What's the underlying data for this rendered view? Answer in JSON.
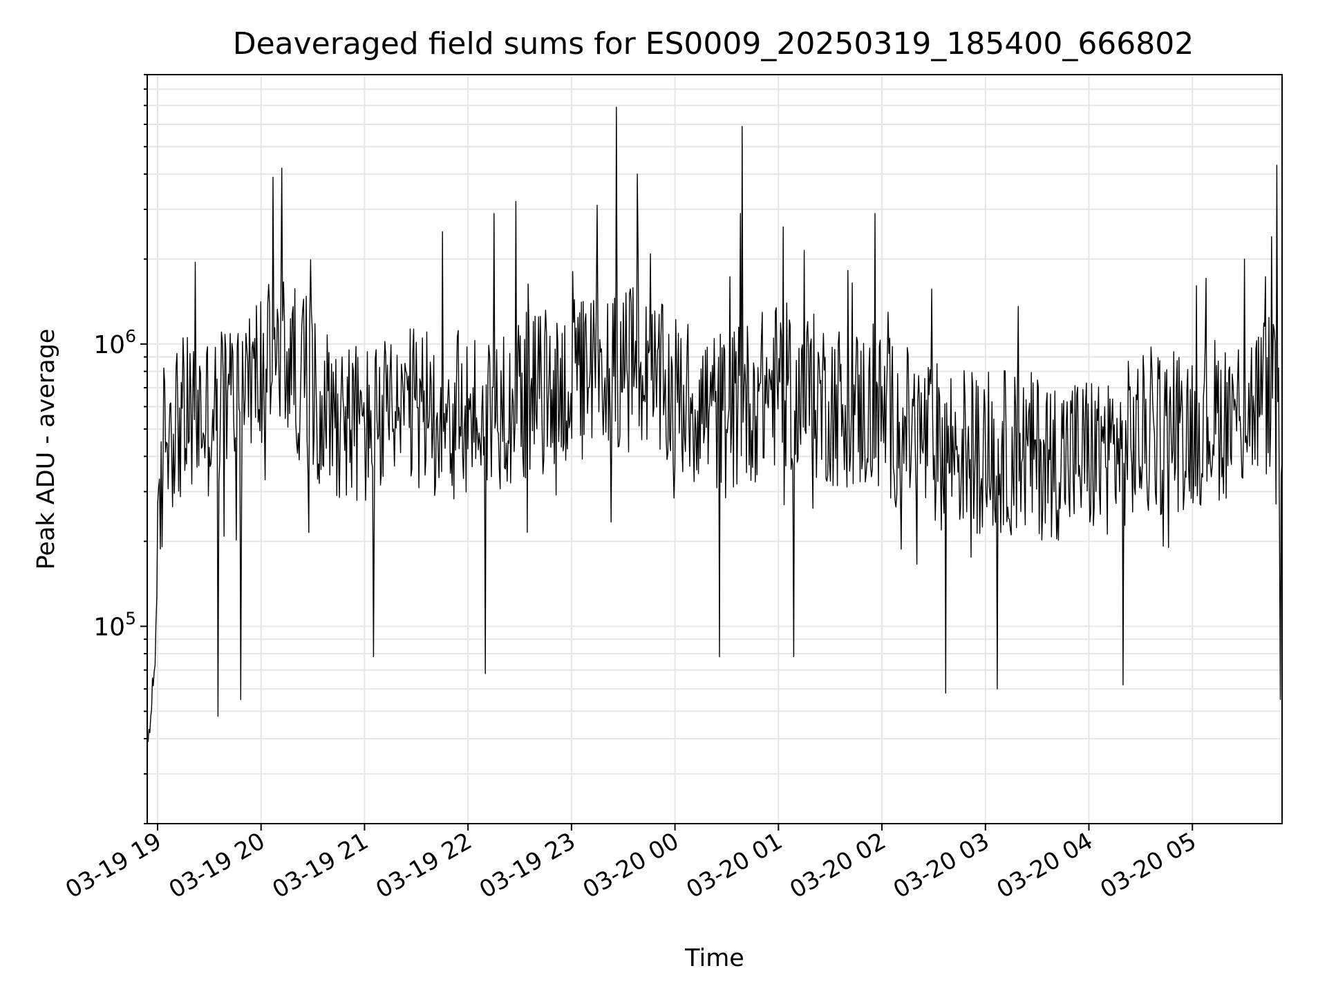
{
  "chart_data": {
    "type": "line",
    "title": "Deaveraged field sums for ES0009_20250319_185400_666802",
    "xlabel": "Time",
    "ylabel": "Peak ADU - average",
    "yscale": "log",
    "ylim": [
      20000,
      9000000
    ],
    "xlim": [
      "2025-03-19 18:54",
      "2025-03-20 05:52"
    ],
    "grid": true,
    "line_color": "#000000",
    "grid_color": "#e6e6e6",
    "x_ticks": [
      {
        "value": "2025-03-19 19:00",
        "label": "03-19 19"
      },
      {
        "value": "2025-03-19 20:00",
        "label": "03-19 20"
      },
      {
        "value": "2025-03-19 21:00",
        "label": "03-19 21"
      },
      {
        "value": "2025-03-19 22:00",
        "label": "03-19 22"
      },
      {
        "value": "2025-03-19 23:00",
        "label": "03-19 23"
      },
      {
        "value": "2025-03-20 00:00",
        "label": "03-20 00"
      },
      {
        "value": "2025-03-20 01:00",
        "label": "03-20 01"
      },
      {
        "value": "2025-03-20 02:00",
        "label": "03-20 02"
      },
      {
        "value": "2025-03-20 03:00",
        "label": "03-20 03"
      },
      {
        "value": "2025-03-20 04:00",
        "label": "03-20 04"
      },
      {
        "value": "2025-03-20 05:00",
        "label": "03-20 05"
      }
    ],
    "y_ticks": [
      {
        "value": 100000,
        "base": "10",
        "exp": "5"
      },
      {
        "value": 1000000,
        "base": "10",
        "exp": "6"
      }
    ],
    "baseline": [
      {
        "x": "2025-03-19 18:54",
        "y": 35000
      },
      {
        "x": "2025-03-19 18:58",
        "y": 70000
      },
      {
        "x": "2025-03-19 19:01",
        "y": 200000
      },
      {
        "x": "2025-03-19 19:04",
        "y": 520000
      },
      {
        "x": "2025-03-19 19:30",
        "y": 560000
      },
      {
        "x": "2025-03-19 20:00",
        "y": 800000
      },
      {
        "x": "2025-03-19 20:15",
        "y": 900000
      },
      {
        "x": "2025-03-19 20:30",
        "y": 650000
      },
      {
        "x": "2025-03-19 21:00",
        "y": 500000
      },
      {
        "x": "2025-03-19 21:30",
        "y": 580000
      },
      {
        "x": "2025-03-19 22:00",
        "y": 560000
      },
      {
        "x": "2025-03-19 22:30",
        "y": 640000
      },
      {
        "x": "2025-03-19 23:00",
        "y": 720000
      },
      {
        "x": "2025-03-19 23:30",
        "y": 850000
      },
      {
        "x": "2025-03-20 00:00",
        "y": 650000
      },
      {
        "x": "2025-03-20 00:30",
        "y": 560000
      },
      {
        "x": "2025-03-20 01:00",
        "y": 720000
      },
      {
        "x": "2025-03-20 01:30",
        "y": 620000
      },
      {
        "x": "2025-03-20 02:00",
        "y": 560000
      },
      {
        "x": "2025-03-20 02:30",
        "y": 440000
      },
      {
        "x": "2025-03-20 03:00",
        "y": 420000
      },
      {
        "x": "2025-03-20 03:30",
        "y": 400000
      },
      {
        "x": "2025-03-20 04:00",
        "y": 400000
      },
      {
        "x": "2025-03-20 04:30",
        "y": 460000
      },
      {
        "x": "2025-03-20 05:00",
        "y": 520000
      },
      {
        "x": "2025-03-20 05:30",
        "y": 580000
      },
      {
        "x": "2025-03-20 05:48",
        "y": 700000
      },
      {
        "x": "2025-03-20 05:52",
        "y": 250000
      }
    ],
    "noise_amplitude_decades": 0.3,
    "sample_count": 1300,
    "peaks": [
      {
        "x": "2025-03-19 19:22",
        "y": 1950000
      },
      {
        "x": "2025-03-19 20:07",
        "y": 3900000
      },
      {
        "x": "2025-03-19 20:12",
        "y": 4200000
      },
      {
        "x": "2025-03-19 21:45",
        "y": 2500000
      },
      {
        "x": "2025-03-19 22:15",
        "y": 2900000
      },
      {
        "x": "2025-03-19 22:28",
        "y": 3200000
      },
      {
        "x": "2025-03-19 23:15",
        "y": 3100000
      },
      {
        "x": "2025-03-19 23:26",
        "y": 6900000
      },
      {
        "x": "2025-03-19 23:38",
        "y": 4000000
      },
      {
        "x": "2025-03-20 00:38",
        "y": 2900000
      },
      {
        "x": "2025-03-20 00:39",
        "y": 5900000
      },
      {
        "x": "2025-03-20 01:03",
        "y": 2600000
      },
      {
        "x": "2025-03-20 01:56",
        "y": 2900000
      },
      {
        "x": "2025-03-20 05:30",
        "y": 2000000
      },
      {
        "x": "2025-03-20 05:46",
        "y": 2400000
      },
      {
        "x": "2025-03-20 05:49",
        "y": 4300000
      }
    ],
    "dips": [
      {
        "x": "2025-03-19 19:35",
        "y": 48000
      },
      {
        "x": "2025-03-19 19:48",
        "y": 55000
      },
      {
        "x": "2025-03-19 21:05",
        "y": 78000
      },
      {
        "x": "2025-03-19 22:10",
        "y": 68000
      },
      {
        "x": "2025-03-20 00:26",
        "y": 78000
      },
      {
        "x": "2025-03-20 01:09",
        "y": 78000
      },
      {
        "x": "2025-03-20 02:37",
        "y": 58000
      },
      {
        "x": "2025-03-20 03:07",
        "y": 60000
      },
      {
        "x": "2025-03-20 04:20",
        "y": 62000
      },
      {
        "x": "2025-03-20 05:51",
        "y": 55000
      }
    ]
  }
}
